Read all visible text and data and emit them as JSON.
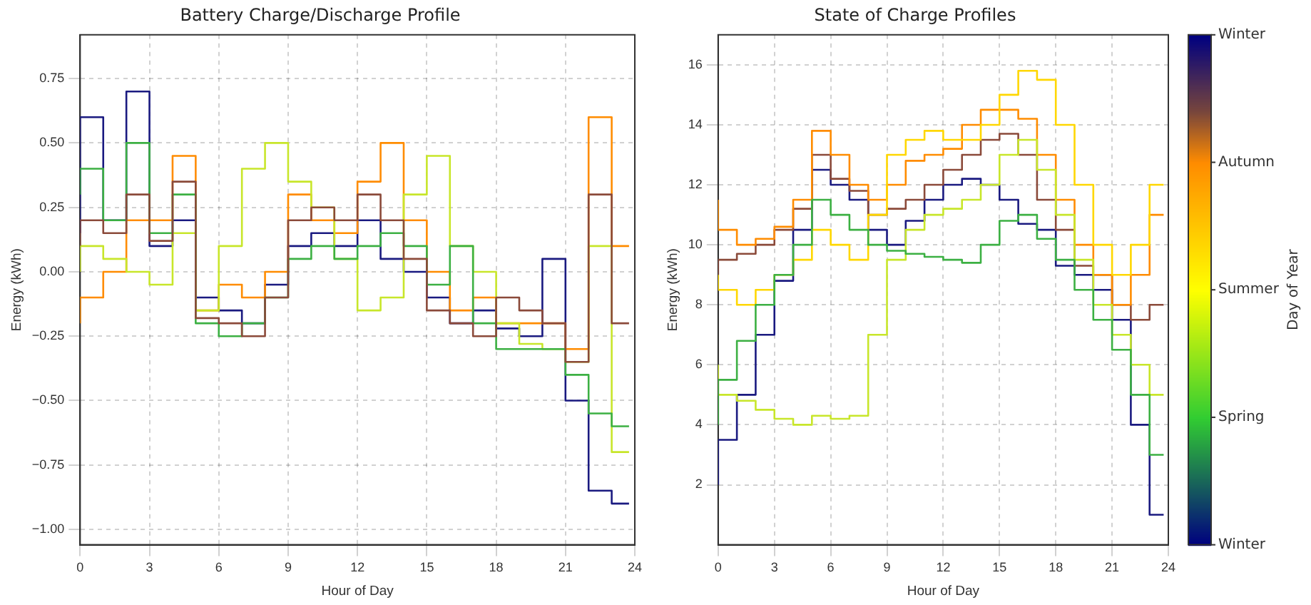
{
  "chart_data": [
    {
      "type": "step",
      "title": "Battery Charge/Discharge Profile",
      "xlabel": "Hour of Day",
      "ylabel": "Energy (kWh)",
      "x": [
        0,
        1,
        2,
        3,
        4,
        5,
        6,
        7,
        8,
        9,
        10,
        11,
        12,
        13,
        14,
        15,
        16,
        17,
        18,
        19,
        20,
        21,
        22,
        23,
        23.75
      ],
      "xlim": [
        0,
        24
      ],
      "xticks": [
        0,
        3,
        6,
        9,
        12,
        15,
        18,
        21,
        24
      ],
      "ylim": [
        -1.06,
        0.92
      ],
      "yticks": [
        {
          "value": -1,
          "label": "−1.00"
        },
        {
          "value": -0.75,
          "label": "−0.75"
        },
        {
          "value": -0.5,
          "label": "−0.50"
        },
        {
          "value": -0.25,
          "label": "−0.25"
        },
        {
          "value": 0,
          "label": "0.00"
        },
        {
          "value": 0.25,
          "label": "0.25"
        },
        {
          "value": 0.5,
          "label": "0.50"
        },
        {
          "value": 0.75,
          "label": "0.75"
        }
      ],
      "grid": true,
      "legend": false,
      "line_style": "solid",
      "series": [
        {
          "color": "#8b4a3a",
          "values": [
            0.1,
            0.2,
            0.15,
            0.3,
            0.12,
            0.35,
            -0.18,
            -0.2,
            -0.25,
            -0.1,
            0.2,
            0.25,
            0.2,
            0.3,
            0.2,
            0.05,
            -0.15,
            -0.2,
            -0.25,
            -0.1,
            -0.15,
            -0.2,
            -0.35,
            0.3,
            -0.2
          ]
        },
        {
          "color": "#3cb043",
          "values": [
            0.3,
            0.4,
            0.2,
            0.5,
            0.15,
            0.3,
            -0.2,
            -0.25,
            -0.2,
            -0.1,
            0.05,
            0.1,
            0.05,
            0.1,
            0.15,
            0.1,
            -0.05,
            0.1,
            -0.2,
            -0.3,
            -0.3,
            -0.3,
            -0.4,
            -0.55,
            -0.6
          ]
        },
        {
          "color": "#c8e62a",
          "values": [
            0,
            0.1,
            0.05,
            0,
            -0.05,
            0.15,
            -0.15,
            0.1,
            0.4,
            0.5,
            0.35,
            0.25,
            0.05,
            -0.15,
            -0.1,
            0.3,
            0.45,
            0.1,
            0,
            -0.2,
            -0.28,
            -0.3,
            -0.35,
            0.1,
            -0.7
          ]
        },
        {
          "color": "#ff8c00",
          "values": [
            -0.2,
            -0.1,
            0,
            0.2,
            0.2,
            0.45,
            -0.15,
            -0.05,
            -0.1,
            0,
            0.3,
            0.2,
            0.15,
            0.35,
            0.5,
            0.2,
            0,
            -0.15,
            -0.1,
            -0.2,
            -0.2,
            -0.2,
            -0.3,
            0.6,
            0.1
          ]
        },
        {
          "color": "#1a1a80",
          "values": [
            0.15,
            0.6,
            0.2,
            0.7,
            0.1,
            0.2,
            -0.1,
            -0.15,
            -0.2,
            -0.05,
            0.1,
            0.15,
            0.1,
            0.2,
            0.05,
            0,
            -0.1,
            -0.2,
            -0.15,
            -0.22,
            -0.25,
            0.05,
            -0.5,
            -0.85,
            -0.9
          ]
        }
      ]
    },
    {
      "type": "step",
      "title": "State of Charge Profiles",
      "xlabel": "Hour of Day",
      "ylabel": "Energy (kWh)",
      "clabel": "Day of Year",
      "clim": [
        0,
        365
      ],
      "cticks": [
        {
          "value": 0,
          "label": "Winter"
        },
        {
          "value": 91.25,
          "label": "Spring"
        },
        {
          "value": 182.5,
          "label": "Summer"
        },
        {
          "value": 273.75,
          "label": "Autumn"
        },
        {
          "value": 365,
          "label": "Winter"
        }
      ],
      "x": [
        0,
        1,
        2,
        3,
        4,
        5,
        6,
        7,
        8,
        9,
        10,
        11,
        12,
        13,
        14,
        15,
        16,
        17,
        18,
        19,
        20,
        21,
        22,
        23,
        23.75
      ],
      "xlim": [
        0,
        24
      ],
      "xticks": [
        0,
        3,
        6,
        9,
        12,
        15,
        18,
        21,
        24
      ],
      "ylim": [
        0,
        17
      ],
      "yticks": [
        2,
        4,
        6,
        8,
        10,
        12,
        14,
        16
      ],
      "grid": true,
      "legend": false,
      "line_style": "solid",
      "series": [
        {
          "color": "#3cb043",
          "values": [
            4,
            5.5,
            6.8,
            8,
            9,
            10,
            11.5,
            11,
            10.5,
            10,
            9.8,
            9.7,
            9.6,
            9.5,
            9.4,
            10,
            10.8,
            11,
            10.2,
            9.5,
            8.5,
            7.5,
            6.5,
            5,
            3
          ]
        },
        {
          "color": "#c8e62a",
          "values": [
            6,
            5,
            4.8,
            4.5,
            4.2,
            4,
            4.3,
            4.2,
            4.3,
            7,
            9.5,
            10.5,
            11,
            11.2,
            11.5,
            12,
            13,
            13.5,
            12.5,
            11,
            9.5,
            8,
            7,
            6,
            5
          ]
        },
        {
          "color": "#ffd700",
          "values": [
            9,
            8.5,
            8,
            8.5,
            9,
            9.5,
            10.5,
            10,
            9.5,
            11,
            13,
            13.5,
            13.8,
            13.5,
            13.5,
            14,
            15,
            15.8,
            15.5,
            14,
            12,
            10,
            9,
            10,
            12
          ]
        },
        {
          "color": "#ff8c00",
          "values": [
            11.5,
            10.5,
            10,
            10.2,
            10.6,
            11.5,
            13.8,
            13,
            12,
            11.5,
            12,
            12.8,
            13,
            13.2,
            14,
            14.5,
            14.5,
            14.2,
            13,
            11.5,
            10,
            9,
            8,
            9,
            11
          ]
        },
        {
          "color": "#8b4a3a",
          "values": [
            9,
            9.5,
            9.7,
            10,
            10.5,
            11.2,
            13,
            12.2,
            11.8,
            11,
            11.2,
            11.5,
            12,
            12.5,
            13,
            13.5,
            13.7,
            13,
            11.5,
            10.5,
            9.3,
            9,
            8,
            7.5,
            8
          ]
        },
        {
          "color": "#1a1a80",
          "values": [
            2,
            3.5,
            5,
            7,
            8.8,
            10.5,
            12.5,
            12,
            11.5,
            10.5,
            10,
            10.8,
            11.5,
            12,
            12.2,
            12,
            11.5,
            10.7,
            10.5,
            9.3,
            9,
            8.5,
            7.5,
            4,
            1
          ]
        }
      ]
    }
  ]
}
